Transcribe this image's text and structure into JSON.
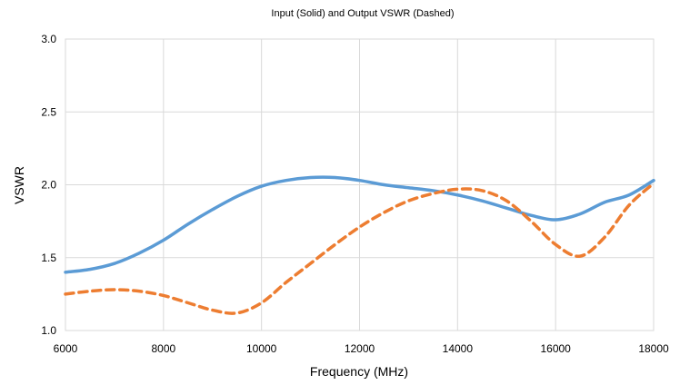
{
  "chart_data": {
    "type": "line",
    "title": "Input (Solid) and Output VSWR (Dashed)",
    "xlabel": "Frequency (MHz)",
    "ylabel": "VSWR",
    "xlim": [
      6000,
      18000
    ],
    "ylim": [
      1.0,
      3.0
    ],
    "x_ticks": [
      "6000",
      "8000",
      "10000",
      "12000",
      "14000",
      "16000",
      "18000"
    ],
    "y_ticks": [
      "1.0",
      "1.5",
      "2.0",
      "2.5",
      "3.0"
    ],
    "grid": true,
    "legend": "none",
    "series": [
      {
        "style": "solid",
        "color": "#5B9BD5",
        "points": [
          [
            6000,
            1.4
          ],
          [
            6500,
            1.42
          ],
          [
            7000,
            1.46
          ],
          [
            7500,
            1.53
          ],
          [
            8000,
            1.62
          ],
          [
            8500,
            1.73
          ],
          [
            9000,
            1.83
          ],
          [
            9500,
            1.92
          ],
          [
            10000,
            1.99
          ],
          [
            10500,
            2.03
          ],
          [
            11000,
            2.05
          ],
          [
            11500,
            2.05
          ],
          [
            12000,
            2.03
          ],
          [
            12500,
            2.0
          ],
          [
            13000,
            1.98
          ],
          [
            13500,
            1.96
          ],
          [
            14000,
            1.93
          ],
          [
            14500,
            1.89
          ],
          [
            15000,
            1.84
          ],
          [
            15500,
            1.79
          ],
          [
            16000,
            1.76
          ],
          [
            16500,
            1.8
          ],
          [
            17000,
            1.88
          ],
          [
            17500,
            1.93
          ],
          [
            18000,
            2.03
          ]
        ]
      },
      {
        "style": "dashed",
        "color": "#ED7D31",
        "points": [
          [
            6000,
            1.25
          ],
          [
            6500,
            1.27
          ],
          [
            7000,
            1.28
          ],
          [
            7500,
            1.27
          ],
          [
            8000,
            1.24
          ],
          [
            8500,
            1.19
          ],
          [
            9000,
            1.14
          ],
          [
            9500,
            1.12
          ],
          [
            10000,
            1.19
          ],
          [
            10500,
            1.33
          ],
          [
            11000,
            1.46
          ],
          [
            11500,
            1.59
          ],
          [
            12000,
            1.71
          ],
          [
            12500,
            1.81
          ],
          [
            13000,
            1.89
          ],
          [
            13500,
            1.94
          ],
          [
            14000,
            1.97
          ],
          [
            14500,
            1.96
          ],
          [
            15000,
            1.89
          ],
          [
            15500,
            1.75
          ],
          [
            16000,
            1.59
          ],
          [
            16500,
            1.51
          ],
          [
            17000,
            1.64
          ],
          [
            17500,
            1.86
          ],
          [
            18000,
            2.01
          ]
        ]
      }
    ]
  }
}
